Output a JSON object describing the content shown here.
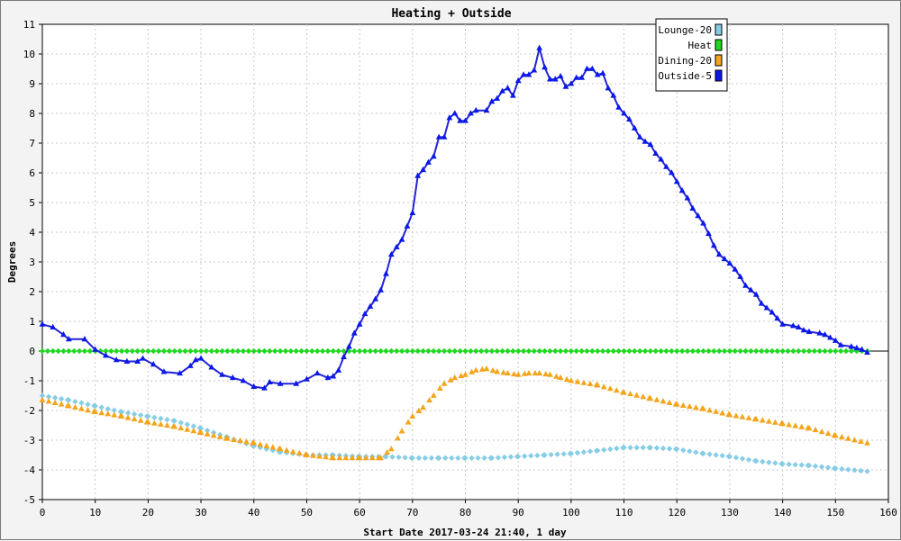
{
  "chart_data": {
    "type": "line",
    "title": "Heating + Outside",
    "xlabel": "Start Date 2017-03-24 21:40, 1 day",
    "ylabel": "Degrees",
    "xlim": [
      0,
      160
    ],
    "ylim": [
      -5,
      11
    ],
    "xticks": [
      0,
      10,
      20,
      30,
      40,
      50,
      60,
      70,
      80,
      90,
      100,
      110,
      120,
      130,
      140,
      150,
      160
    ],
    "yticks": [
      -5,
      -4,
      -3,
      -2,
      -1,
      0,
      1,
      2,
      3,
      4,
      5,
      6,
      7,
      8,
      9,
      10,
      11
    ],
    "grid": true,
    "legend_position": "top-right",
    "colors": {
      "lounge": "#87cde6",
      "heat": "#1fd81f",
      "dining": "#f4a51c",
      "outside": "#0a18e8",
      "outside_line": "#2323d8"
    },
    "series": [
      {
        "name": "Lounge-20",
        "key": "lounge",
        "marker": "diamond",
        "points": [
          [
            0,
            -1.5
          ],
          [
            5,
            -1.65
          ],
          [
            10,
            -1.85
          ],
          [
            15,
            -2.05
          ],
          [
            20,
            -2.2
          ],
          [
            25,
            -2.35
          ],
          [
            30,
            -2.6
          ],
          [
            35,
            -2.9
          ],
          [
            40,
            -3.2
          ],
          [
            45,
            -3.4
          ],
          [
            50,
            -3.5
          ],
          [
            55,
            -3.5
          ],
          [
            60,
            -3.55
          ],
          [
            65,
            -3.55
          ],
          [
            70,
            -3.6
          ],
          [
            75,
            -3.6
          ],
          [
            80,
            -3.6
          ],
          [
            85,
            -3.6
          ],
          [
            90,
            -3.55
          ],
          [
            95,
            -3.5
          ],
          [
            100,
            -3.45
          ],
          [
            105,
            -3.35
          ],
          [
            110,
            -3.25
          ],
          [
            115,
            -3.25
          ],
          [
            120,
            -3.3
          ],
          [
            125,
            -3.45
          ],
          [
            130,
            -3.55
          ],
          [
            135,
            -3.7
          ],
          [
            140,
            -3.8
          ],
          [
            145,
            -3.85
          ],
          [
            150,
            -3.95
          ],
          [
            156,
            -4.05
          ]
        ]
      },
      {
        "name": "Heat",
        "key": "heat",
        "marker": "diamond",
        "points": [
          [
            0,
            0
          ],
          [
            156,
            0
          ]
        ]
      },
      {
        "name": "Dining-20",
        "key": "dining",
        "marker": "triangle",
        "points": [
          [
            0,
            -1.65
          ],
          [
            5,
            -1.85
          ],
          [
            10,
            -2.05
          ],
          [
            15,
            -2.2
          ],
          [
            20,
            -2.4
          ],
          [
            25,
            -2.55
          ],
          [
            30,
            -2.75
          ],
          [
            35,
            -2.95
          ],
          [
            40,
            -3.1
          ],
          [
            45,
            -3.3
          ],
          [
            50,
            -3.5
          ],
          [
            55,
            -3.6
          ],
          [
            60,
            -3.6
          ],
          [
            64,
            -3.6
          ],
          [
            66,
            -3.3
          ],
          [
            68,
            -2.7
          ],
          [
            70,
            -2.2
          ],
          [
            72,
            -1.9
          ],
          [
            74,
            -1.5
          ],
          [
            76,
            -1.1
          ],
          [
            78,
            -0.9
          ],
          [
            80,
            -0.8
          ],
          [
            82,
            -0.65
          ],
          [
            84,
            -0.6
          ],
          [
            86,
            -0.7
          ],
          [
            88,
            -0.75
          ],
          [
            90,
            -0.8
          ],
          [
            92,
            -0.75
          ],
          [
            94,
            -0.75
          ],
          [
            96,
            -0.8
          ],
          [
            98,
            -0.9
          ],
          [
            100,
            -1.0
          ],
          [
            105,
            -1.15
          ],
          [
            110,
            -1.4
          ],
          [
            115,
            -1.6
          ],
          [
            120,
            -1.8
          ],
          [
            125,
            -1.95
          ],
          [
            130,
            -2.15
          ],
          [
            135,
            -2.3
          ],
          [
            140,
            -2.45
          ],
          [
            145,
            -2.6
          ],
          [
            150,
            -2.85
          ],
          [
            156,
            -3.1
          ]
        ]
      },
      {
        "name": "Outside-5",
        "key": "outside",
        "marker": "triangle",
        "points": [
          [
            0,
            0.9
          ],
          [
            2,
            0.8
          ],
          [
            4,
            0.55
          ],
          [
            5,
            0.4
          ],
          [
            8,
            0.4
          ],
          [
            10,
            0.05
          ],
          [
            12,
            -0.15
          ],
          [
            14,
            -0.3
          ],
          [
            16,
            -0.35
          ],
          [
            18,
            -0.35
          ],
          [
            19,
            -0.25
          ],
          [
            21,
            -0.45
          ],
          [
            23,
            -0.7
          ],
          [
            26,
            -0.75
          ],
          [
            28,
            -0.5
          ],
          [
            29,
            -0.3
          ],
          [
            30,
            -0.25
          ],
          [
            32,
            -0.55
          ],
          [
            34,
            -0.8
          ],
          [
            36,
            -0.9
          ],
          [
            38,
            -1.0
          ],
          [
            40,
            -1.2
          ],
          [
            42,
            -1.25
          ],
          [
            43,
            -1.05
          ],
          [
            45,
            -1.1
          ],
          [
            48,
            -1.1
          ],
          [
            50,
            -0.95
          ],
          [
            52,
            -0.75
          ],
          [
            54,
            -0.9
          ],
          [
            55,
            -0.85
          ],
          [
            56,
            -0.65
          ],
          [
            57,
            -0.2
          ],
          [
            58,
            0.15
          ],
          [
            59,
            0.6
          ],
          [
            60,
            0.9
          ],
          [
            61,
            1.25
          ],
          [
            62,
            1.5
          ],
          [
            63,
            1.75
          ],
          [
            64,
            2.05
          ],
          [
            65,
            2.6
          ],
          [
            66,
            3.25
          ],
          [
            67,
            3.5
          ],
          [
            68,
            3.75
          ],
          [
            69,
            4.2
          ],
          [
            70,
            4.65
          ],
          [
            71,
            5.9
          ],
          [
            72,
            6.1
          ],
          [
            73,
            6.35
          ],
          [
            74,
            6.55
          ],
          [
            75,
            7.2
          ],
          [
            76,
            7.2
          ],
          [
            77,
            7.85
          ],
          [
            78,
            8.0
          ],
          [
            79,
            7.75
          ],
          [
            80,
            7.75
          ],
          [
            81,
            8.0
          ],
          [
            82,
            8.1
          ],
          [
            84,
            8.1
          ],
          [
            85,
            8.4
          ],
          [
            86,
            8.5
          ],
          [
            87,
            8.75
          ],
          [
            88,
            8.85
          ],
          [
            89,
            8.6
          ],
          [
            90,
            9.1
          ],
          [
            91,
            9.3
          ],
          [
            92,
            9.3
          ],
          [
            93,
            9.45
          ],
          [
            94,
            10.2
          ],
          [
            95,
            9.55
          ],
          [
            96,
            9.15
          ],
          [
            97,
            9.15
          ],
          [
            98,
            9.25
          ],
          [
            99,
            8.9
          ],
          [
            100,
            9.0
          ],
          [
            101,
            9.2
          ],
          [
            102,
            9.2
          ],
          [
            103,
            9.5
          ],
          [
            104,
            9.5
          ],
          [
            105,
            9.3
          ],
          [
            106,
            9.35
          ],
          [
            107,
            8.85
          ],
          [
            108,
            8.6
          ],
          [
            109,
            8.2
          ],
          [
            110,
            8.0
          ],
          [
            111,
            7.8
          ],
          [
            112,
            7.5
          ],
          [
            113,
            7.2
          ],
          [
            114,
            7.05
          ],
          [
            115,
            6.95
          ],
          [
            116,
            6.65
          ],
          [
            117,
            6.45
          ],
          [
            118,
            6.2
          ],
          [
            119,
            6.0
          ],
          [
            120,
            5.7
          ],
          [
            121,
            5.4
          ],
          [
            122,
            5.15
          ],
          [
            123,
            4.8
          ],
          [
            124,
            4.55
          ],
          [
            125,
            4.3
          ],
          [
            126,
            3.95
          ],
          [
            127,
            3.55
          ],
          [
            128,
            3.25
          ],
          [
            129,
            3.1
          ],
          [
            130,
            2.95
          ],
          [
            131,
            2.75
          ],
          [
            132,
            2.5
          ],
          [
            133,
            2.2
          ],
          [
            134,
            2.05
          ],
          [
            135,
            1.9
          ],
          [
            136,
            1.6
          ],
          [
            137,
            1.45
          ],
          [
            138,
            1.3
          ],
          [
            139,
            1.1
          ],
          [
            140,
            0.9
          ],
          [
            142,
            0.85
          ],
          [
            143,
            0.8
          ],
          [
            144,
            0.7
          ],
          [
            145,
            0.65
          ],
          [
            147,
            0.6
          ],
          [
            148,
            0.55
          ],
          [
            149,
            0.45
          ],
          [
            150,
            0.35
          ],
          [
            151,
            0.2
          ],
          [
            153,
            0.15
          ],
          [
            154,
            0.1
          ],
          [
            155,
            0.05
          ],
          [
            156,
            -0.05
          ]
        ]
      }
    ]
  }
}
